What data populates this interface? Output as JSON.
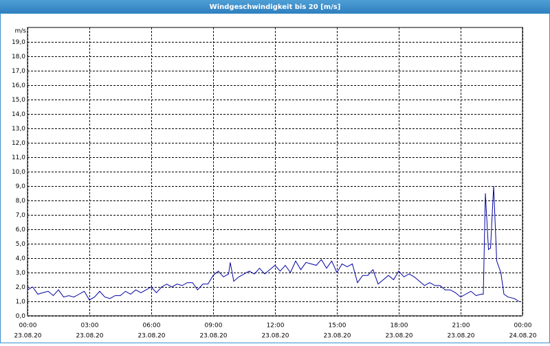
{
  "chart_data": {
    "type": "line",
    "title": "Windgeschwindigkeit bis 20 [m/s]",
    "y_unit": "m/s",
    "xlim": [
      0,
      24
    ],
    "xticks": [
      {
        "value": 0,
        "label": "00:00"
      },
      {
        "value": 3,
        "label": "03:00"
      },
      {
        "value": 6,
        "label": "06:00"
      },
      {
        "value": 9,
        "label": "09:00"
      },
      {
        "value": 12,
        "label": "12:00"
      },
      {
        "value": 15,
        "label": "15:00"
      },
      {
        "value": 18,
        "label": "18:00"
      },
      {
        "value": 21,
        "label": "21:00"
      },
      {
        "value": 24,
        "label": "00:00"
      }
    ],
    "xtick_dates": [
      "23.08.20",
      "23.08.20",
      "23.08.20",
      "23.08.20",
      "23.08.20",
      "23.08.20",
      "23.08.20",
      "23.08.20",
      "24.08.20"
    ],
    "ylim": [
      0,
      20
    ],
    "yticks": [
      {
        "value": 0,
        "label": "0,0"
      },
      {
        "value": 1,
        "label": "1,0"
      },
      {
        "value": 2,
        "label": "2,0"
      },
      {
        "value": 3,
        "label": "3,0"
      },
      {
        "value": 4,
        "label": "4,0"
      },
      {
        "value": 5,
        "label": "5,0"
      },
      {
        "value": 6,
        "label": "6,0"
      },
      {
        "value": 7,
        "label": "7,0"
      },
      {
        "value": 8,
        "label": "8,0"
      },
      {
        "value": 9,
        "label": "9,0"
      },
      {
        "value": 10,
        "label": "10,0"
      },
      {
        "value": 11,
        "label": "11,0"
      },
      {
        "value": 12,
        "label": "12,0"
      },
      {
        "value": 13,
        "label": "13,0"
      },
      {
        "value": 14,
        "label": "14,0"
      },
      {
        "value": 15,
        "label": "15,0"
      },
      {
        "value": 16,
        "label": "16,0"
      },
      {
        "value": 17,
        "label": "17,0"
      },
      {
        "value": 18,
        "label": "18,0"
      },
      {
        "value": 19,
        "label": "19,0"
      }
    ],
    "grid": true,
    "series": [
      {
        "name": "Windgeschwindigkeit",
        "color": "#0000a0",
        "x": [
          0,
          0.25,
          0.5,
          0.75,
          1,
          1.25,
          1.5,
          1.75,
          2,
          2.25,
          2.5,
          2.75,
          3,
          3.25,
          3.5,
          3.75,
          4,
          4.25,
          4.5,
          4.75,
          5,
          5.25,
          5.5,
          5.75,
          6,
          6.25,
          6.5,
          6.75,
          7,
          7.25,
          7.5,
          7.75,
          8,
          8.25,
          8.5,
          8.75,
          9,
          9.25,
          9.5,
          9.75,
          9.83,
          10,
          10.25,
          10.5,
          10.75,
          11,
          11.25,
          11.5,
          11.75,
          12,
          12.25,
          12.5,
          12.75,
          13,
          13.25,
          13.5,
          13.75,
          14,
          14.25,
          14.5,
          14.75,
          15,
          15.25,
          15.5,
          15.75,
          16,
          16.25,
          16.5,
          16.75,
          17,
          17.25,
          17.5,
          17.75,
          18,
          18.25,
          18.5,
          18.75,
          19,
          19.25,
          19.5,
          19.75,
          20,
          20.25,
          20.5,
          20.75,
          21,
          21.25,
          21.5,
          21.75,
          22,
          22.1,
          22.2,
          22.35,
          22.45,
          22.6,
          22.75,
          22.95,
          23.1,
          23.3,
          23.6,
          23.83
        ],
        "values": [
          1.8,
          2.0,
          1.5,
          1.6,
          1.7,
          1.4,
          1.8,
          1.3,
          1.4,
          1.3,
          1.5,
          1.7,
          1.1,
          1.3,
          1.7,
          1.3,
          1.2,
          1.4,
          1.4,
          1.7,
          1.5,
          1.8,
          1.6,
          1.8,
          2.0,
          1.6,
          2.0,
          2.2,
          2.0,
          2.2,
          2.1,
          2.3,
          2.3,
          1.8,
          2.2,
          2.2,
          2.8,
          3.1,
          2.7,
          2.9,
          3.7,
          2.4,
          2.7,
          2.9,
          3.1,
          2.9,
          3.3,
          2.9,
          3.2,
          3.5,
          3.1,
          3.5,
          3.0,
          3.8,
          3.2,
          3.7,
          3.6,
          3.5,
          3.9,
          3.3,
          3.8,
          3.0,
          3.6,
          3.4,
          3.6,
          2.3,
          2.8,
          2.8,
          3.2,
          2.2,
          2.5,
          2.8,
          2.5,
          3.1,
          2.7,
          2.9,
          2.7,
          2.4,
          2.1,
          2.3,
          2.1,
          2.1,
          1.8,
          1.8,
          1.6,
          1.3,
          1.5,
          1.7,
          1.4,
          1.5,
          1.5,
          8.5,
          4.6,
          4.7,
          9.0,
          3.8,
          3.0,
          1.5,
          1.3,
          1.2,
          1.0
        ]
      }
    ]
  }
}
